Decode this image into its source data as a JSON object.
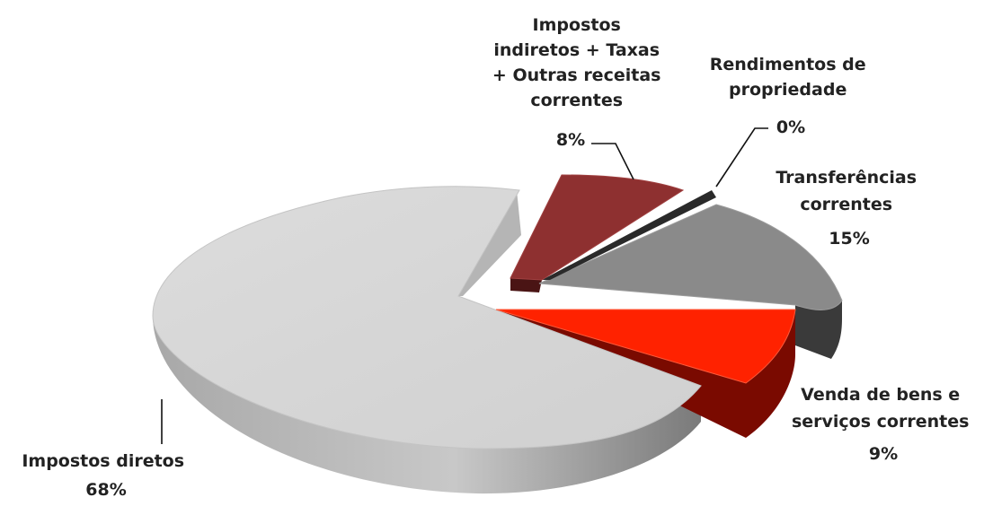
{
  "chart_data": {
    "type": "pie",
    "style": "3d-exploded",
    "slices": [
      {
        "label": "Impostos diretos",
        "value": 68,
        "value_label": "68%",
        "color": "#d6d6d6"
      },
      {
        "label": "Venda de bens e serviços correntes",
        "value": 9,
        "value_label": "9%",
        "color": "#ff2200"
      },
      {
        "label": "Transferências correntes",
        "value": 15,
        "value_label": "15%",
        "color": "#8a8a8a"
      },
      {
        "label": "Rendimentos de propriedade",
        "value": 0,
        "value_label": "0%",
        "color": "#3a3a3a"
      },
      {
        "label": "Impostos indiretos + Taxas + Outras receitas correntes",
        "value": 8,
        "value_label": "8%",
        "color": "#8e3030"
      }
    ]
  }
}
